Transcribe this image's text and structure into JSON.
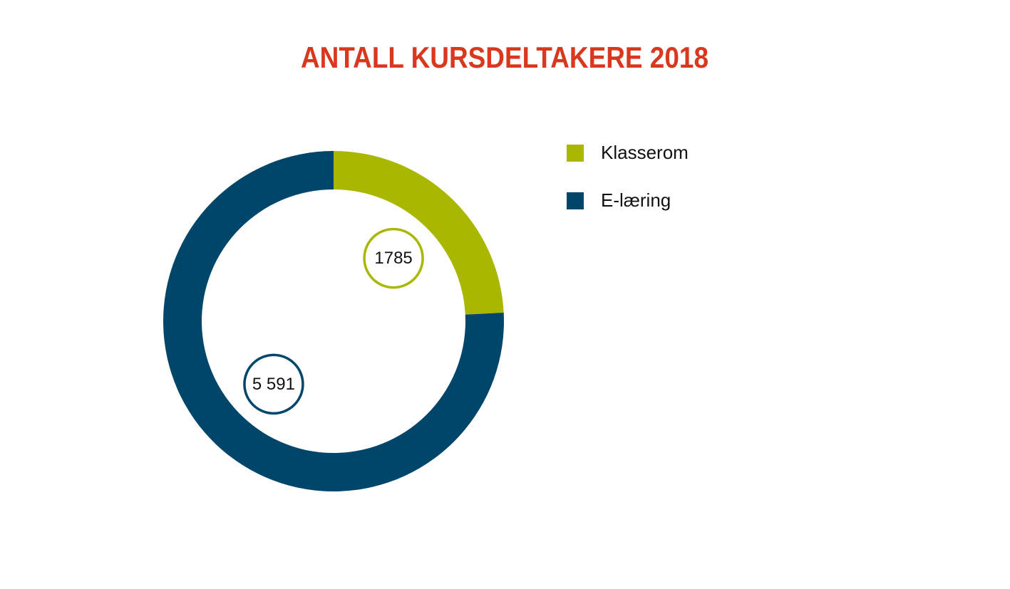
{
  "chart_data": {
    "type": "donut",
    "title": "ANTALL KURSDELTAKERE 2018",
    "categories": [
      "Klasserom",
      "E-læring"
    ],
    "values": [
      1785,
      5591
    ],
    "value_labels": [
      "1785",
      "5 591"
    ],
    "colors": [
      "#a9b700",
      "#00466b"
    ],
    "title_color": "#d9381e"
  }
}
